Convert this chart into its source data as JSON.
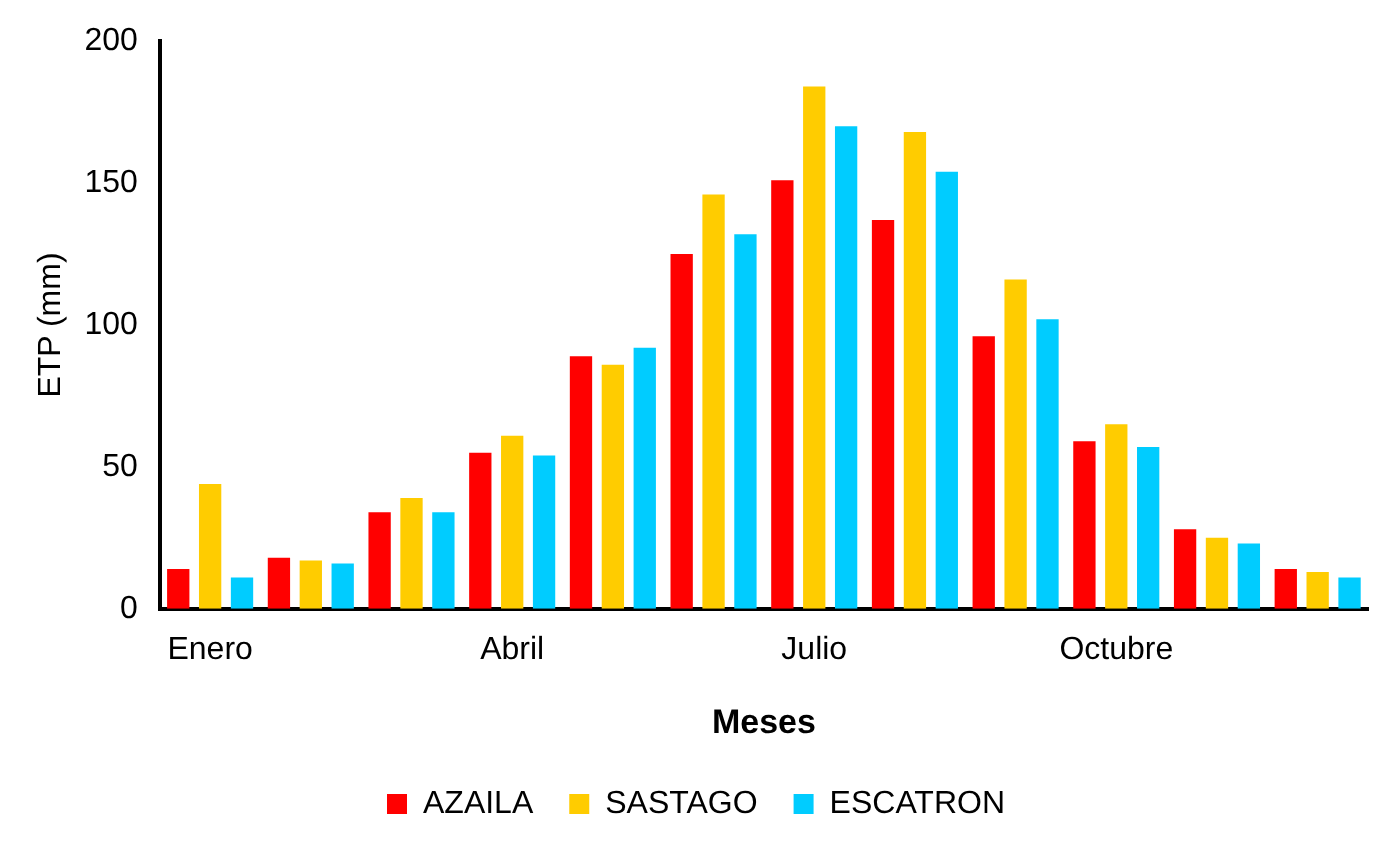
{
  "chart_data": {
    "type": "bar",
    "xlabel": "Meses",
    "ylabel": "ETP (mm)",
    "categories": [
      "Enero",
      null,
      null,
      "Abril",
      null,
      null,
      "Julio",
      null,
      null,
      "Octubre",
      null,
      null
    ],
    "series": [
      {
        "name": "AZAILA",
        "color": "#ff0000",
        "values": [
          14,
          18,
          34,
          55,
          89,
          125,
          151,
          137,
          96,
          59,
          28,
          14
        ]
      },
      {
        "name": "SASTAGO",
        "color": "#ffcc00",
        "values": [
          44,
          17,
          39,
          61,
          86,
          146,
          184,
          168,
          116,
          65,
          25,
          13
        ]
      },
      {
        "name": "ESCATRON",
        "color": "#00ccff",
        "values": [
          11,
          16,
          34,
          54,
          92,
          132,
          170,
          154,
          102,
          57,
          23,
          11
        ]
      }
    ],
    "ylim": [
      0,
      200
    ],
    "yticks": [
      0,
      50,
      100,
      150,
      200
    ],
    "grid": false,
    "legend": "bottom"
  }
}
